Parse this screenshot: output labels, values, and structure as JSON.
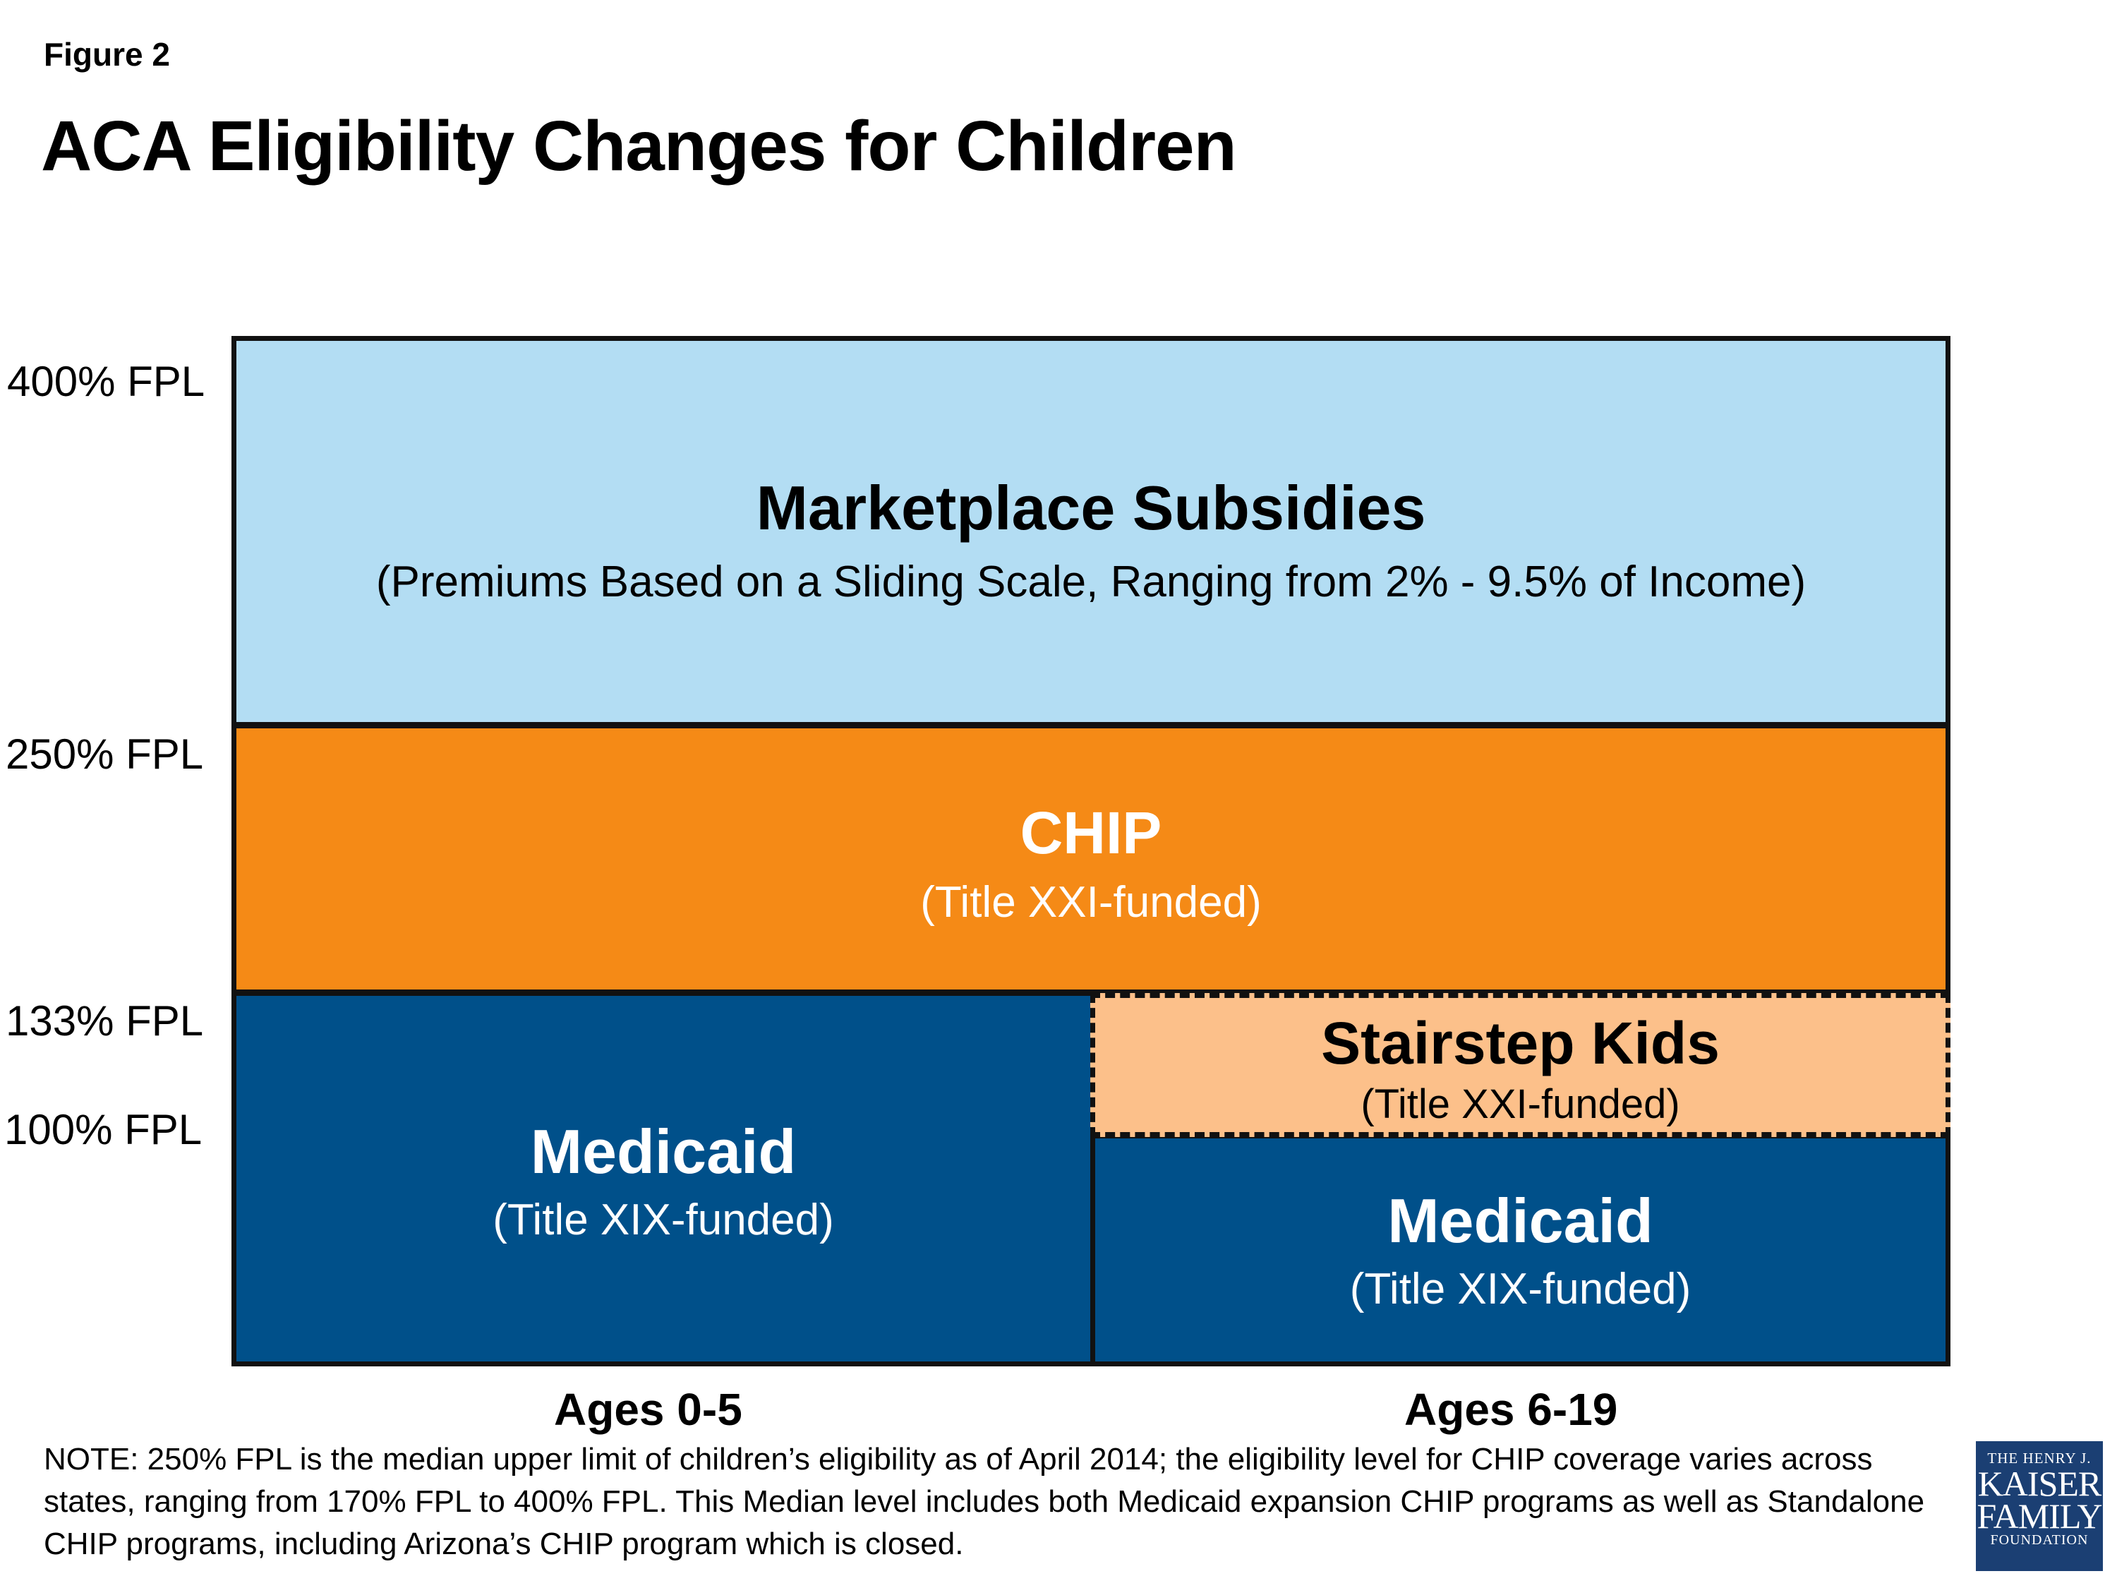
{
  "figure_label": "Figure 2",
  "title": "ACA Eligibility Changes for Children",
  "fpl_labels": {
    "fpl400": "400% FPL",
    "fpl250": "250% FPL",
    "fpl133": "133% FPL",
    "fpl100": "100% FPL"
  },
  "blocks": {
    "marketplace": {
      "heading": "Marketplace Subsidies",
      "subtitle": "(Premiums Based on a Sliding Scale, Ranging from 2% - 9.5% of Income)",
      "color": "#b3ddf3"
    },
    "chip": {
      "heading": "CHIP",
      "subtitle": "(Title XXI-funded)",
      "color": "#f58a16"
    },
    "medicaid_0_5": {
      "heading": "Medicaid",
      "subtitle": "(Title XIX-funded)",
      "color": "#00508a"
    },
    "stairstep": {
      "heading": "Stairstep Kids",
      "subtitle": "(Title XXI-funded)",
      "color": "#fcc08a"
    },
    "medicaid_6_19": {
      "heading": "Medicaid",
      "subtitle": "(Title XIX-funded)",
      "color": "#00508a"
    }
  },
  "age_groups": {
    "left": "Ages 0-5",
    "right": "Ages 6-19"
  },
  "note": "NOTE: 250% FPL is the median upper limit of children’s eligibility as of April 2014; the eligibility level for CHIP coverage varies across states, ranging from 170% FPL to 400% FPL. This Median level includes both Medicaid expansion CHIP programs as well as Standalone CHIP programs, including Arizona’s CHIP program which is closed.",
  "logo": {
    "line1": "THE HENRY J.",
    "line2": "KAISER",
    "line3": "FAMILY",
    "line4": "FOUNDATION"
  }
}
